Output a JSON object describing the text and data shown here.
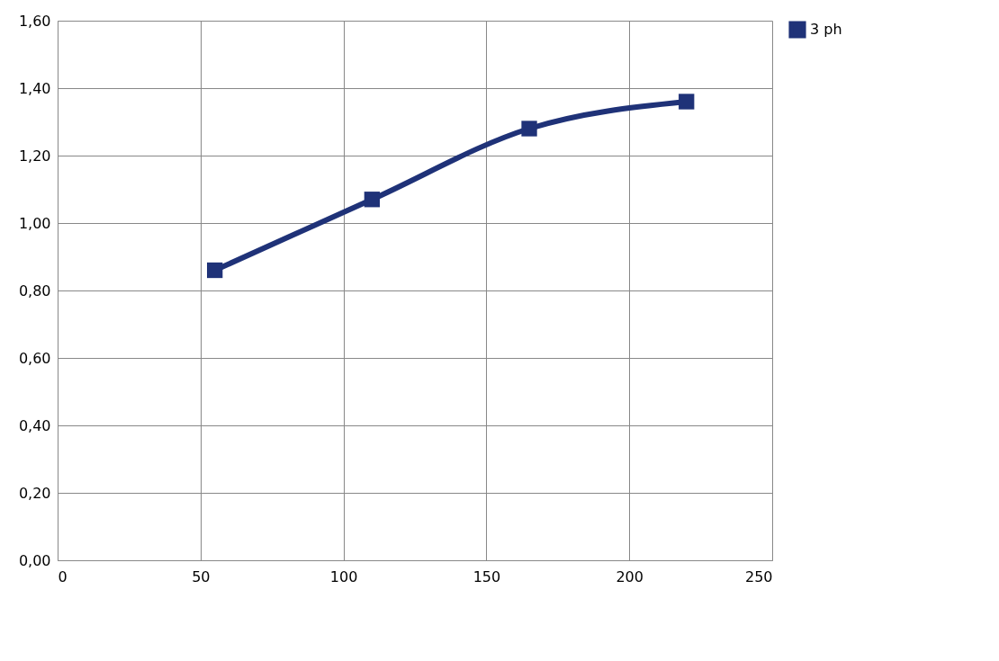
{
  "chart_data": {
    "type": "line",
    "x": [
      55,
      110,
      165,
      220
    ],
    "series": [
      {
        "name": "3 ph",
        "color": "#1f3278",
        "values": [
          0.86,
          1.07,
          1.28,
          1.36
        ]
      }
    ],
    "xlim": [
      0,
      250
    ],
    "xticks": [
      0,
      50,
      100,
      150,
      200,
      250
    ],
    "ylim": [
      0,
      1.6
    ],
    "yticks": [
      {
        "value": 0,
        "label": "0,00"
      },
      {
        "value": 0.2,
        "label": "0,20"
      },
      {
        "value": 0.4,
        "label": "0,40"
      },
      {
        "value": 0.6,
        "label": "0,60"
      },
      {
        "value": 0.8,
        "label": "0,80"
      },
      {
        "value": 1.0,
        "label": "1,00"
      },
      {
        "value": 1.2,
        "label": "1,20"
      },
      {
        "value": 1.4,
        "label": "1,40"
      },
      {
        "value": 1.6,
        "label": "1,60"
      }
    ],
    "grid": true,
    "legend": "right",
    "marker": "square",
    "line_style": "solid"
  }
}
